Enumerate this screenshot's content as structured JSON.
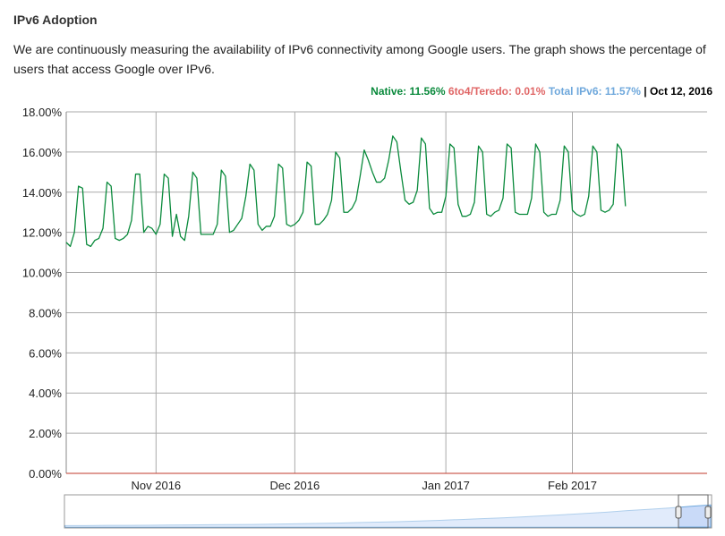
{
  "header": {
    "title": "IPv6 Adoption",
    "description": "We are continuously measuring the availability of IPv6 connectivity among Google users. The graph shows the percentage of users that access Google over IPv6."
  },
  "legend": {
    "native": "Native: 11.56%",
    "teredo": "6to4/Teredo: 0.01%",
    "total": "Total IPv6: 11.57%",
    "separator": "|",
    "date": "Oct 12, 2016"
  },
  "colors": {
    "native": "#0a8a3c",
    "teredo": "#e06666",
    "total": "#6fa8dc",
    "baseline": "#c0392b",
    "grid": "#aaaaaa",
    "navigator_fill": "#c9daf8"
  },
  "chart_data": {
    "type": "line",
    "ylim": [
      0,
      18
    ],
    "xlim": [
      0,
      157
    ],
    "yticks": [
      {
        "v": 0,
        "label": "0.00%"
      },
      {
        "v": 2,
        "label": "2.00%"
      },
      {
        "v": 4,
        "label": "4.00%"
      },
      {
        "v": 6,
        "label": "6.00%"
      },
      {
        "v": 8,
        "label": "8.00%"
      },
      {
        "v": 10,
        "label": "10.00%"
      },
      {
        "v": 12,
        "label": "12.00%"
      },
      {
        "v": 14,
        "label": "14.00%"
      },
      {
        "v": 16,
        "label": "16.00%"
      },
      {
        "v": 18,
        "label": "18.00%"
      }
    ],
    "xticks": [
      {
        "label": "Nov 2016",
        "x": 22
      },
      {
        "label": "Dec 2016",
        "x": 56
      },
      {
        "label": "Jan 2017",
        "x": 93
      },
      {
        "label": "Feb 2017",
        "x": 124
      }
    ],
    "series": [
      {
        "name": "Native",
        "color": "#0a8a3c",
        "y": [
          11.5,
          11.3,
          12.0,
          14.3,
          14.2,
          11.4,
          11.3,
          11.6,
          11.7,
          12.2,
          14.5,
          14.3,
          11.7,
          11.6,
          11.7,
          11.9,
          12.6,
          14.9,
          14.9,
          12.0,
          12.3,
          12.2,
          11.9,
          12.4,
          14.9,
          14.7,
          11.8,
          12.9,
          11.8,
          11.6,
          12.8,
          15.0,
          14.7,
          11.9,
          11.9,
          11.9,
          11.9,
          12.4,
          15.1,
          14.8,
          12.0,
          12.1,
          12.4,
          12.7,
          13.8,
          15.4,
          15.1,
          12.4,
          12.1,
          12.3,
          12.3,
          12.8,
          15.4,
          15.2,
          12.4,
          12.3,
          12.4,
          12.6,
          13.0,
          15.5,
          15.3,
          12.4,
          12.4,
          12.6,
          12.9,
          13.6,
          16.0,
          15.7,
          13.0,
          13.0,
          13.2,
          13.6,
          14.8,
          16.1,
          15.6,
          15.0,
          14.5,
          14.5,
          14.7,
          15.6,
          16.8,
          16.5,
          15.0,
          13.6,
          13.4,
          13.5,
          14.1,
          16.7,
          16.4,
          13.2,
          12.9,
          13.0,
          13.0,
          13.8,
          16.4,
          16.2,
          13.4,
          12.8,
          12.8,
          12.9,
          13.5,
          16.3,
          16.0,
          12.9,
          12.8,
          13.0,
          13.1,
          13.7,
          16.4,
          16.2,
          13.0,
          12.9,
          12.9,
          12.9,
          13.7,
          16.4,
          16.0,
          13.0,
          12.8,
          12.9,
          12.9,
          13.6,
          16.3,
          16.0,
          13.1,
          12.9,
          12.8,
          12.9,
          13.8,
          16.3,
          16.0,
          13.1,
          13.0,
          13.1,
          13.4,
          16.4,
          16.1,
          13.3
        ]
      }
    ],
    "navigator": {
      "y": [
        0.9,
        0.9,
        1.0,
        1.0,
        1.1,
        1.2,
        1.3,
        1.4,
        1.5,
        1.6,
        1.8,
        2.0,
        2.2,
        2.4,
        2.7,
        3.0,
        3.3,
        3.7,
        4.1,
        4.6,
        5.1,
        5.6,
        6.2,
        6.9,
        7.6,
        8.3,
        9.1,
        10.0,
        10.8,
        11.6,
        12.6,
        13.5
      ]
    }
  }
}
